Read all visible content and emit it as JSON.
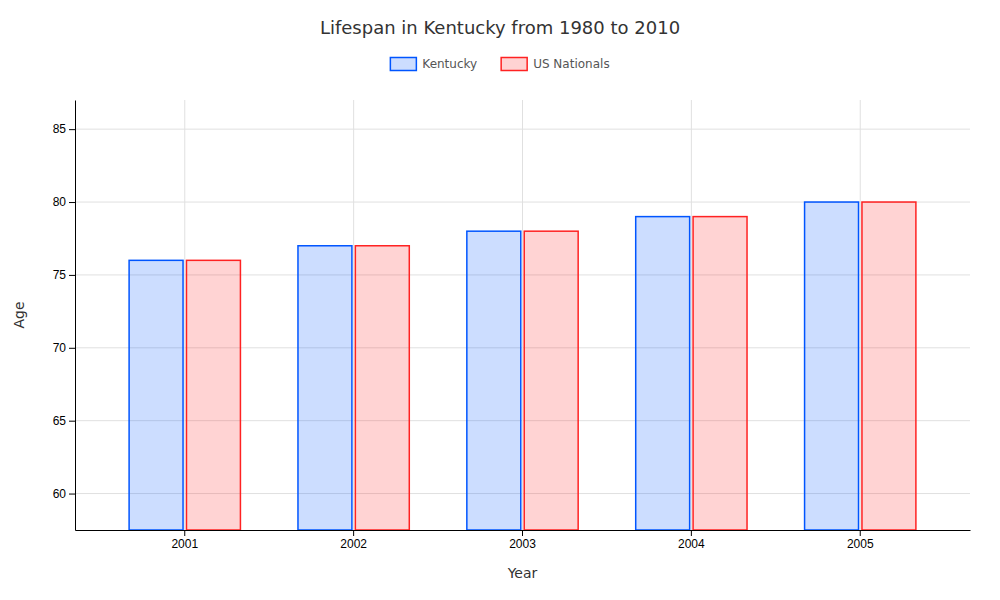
{
  "chart_data": {
    "type": "bar",
    "title": "Lifespan in Kentucky from 1980 to 2010",
    "xlabel": "Year",
    "ylabel": "Age",
    "categories": [
      "2001",
      "2002",
      "2003",
      "2004",
      "2005"
    ],
    "series": [
      {
        "name": "Kentucky",
        "color": "#0055ff",
        "values": [
          76,
          77,
          78,
          79,
          80
        ]
      },
      {
        "name": "US Nationals",
        "color": "#ff2222",
        "values": [
          76,
          77,
          78,
          79,
          80
        ]
      }
    ],
    "ylim": [
      57.5,
      87
    ],
    "yticks": [
      60,
      65,
      70,
      75,
      80,
      85
    ],
    "grid": true,
    "legend": "top"
  }
}
